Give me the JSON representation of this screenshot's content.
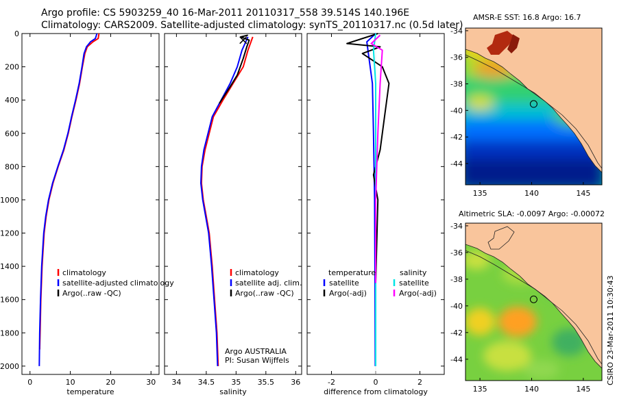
{
  "header": {
    "line1": "Argo profile: CS 5903259_40 16-Mar-2011 20110317_558 39.514S 140.196E",
    "line2": "Climatology: CARS2009. Satellite-adjusted climatology: synTS_20110317.nc (0.5d later)"
  },
  "colors": {
    "climatology": "#ff0000",
    "satellite": "#0000ff",
    "argo": "#000000",
    "sal_satellite": "#00e5e5",
    "sal_argo": "#ff00ff",
    "land": "#f9c59c"
  },
  "chart_data": [
    {
      "type": "line",
      "xlabel": "temperature",
      "ylabel": "",
      "xlim": [
        -2,
        32
      ],
      "ylim": [
        2050,
        0
      ],
      "y_reversed": true,
      "x_ticks": [
        0,
        10,
        20,
        30
      ],
      "y_ticks": [
        0,
        200,
        400,
        600,
        800,
        1000,
        1200,
        1400,
        1600,
        1800,
        2000
      ],
      "legend": {
        "placement": "lower-right",
        "entries": [
          "climatology",
          "satellite-adjusted climatology",
          "Argo(..raw -QC)"
        ]
      },
      "series": [
        {
          "name": "climatology",
          "color": "#ff0000",
          "points": [
            [
              17.1,
              0
            ],
            [
              16.9,
              30
            ],
            [
              15.6,
              50
            ],
            [
              14.2,
              80
            ],
            [
              13.6,
              120
            ],
            [
              13.0,
              200
            ],
            [
              12.3,
              300
            ],
            [
              11.4,
              400
            ],
            [
              10.4,
              500
            ],
            [
              9.5,
              600
            ],
            [
              8.4,
              700
            ],
            [
              7.0,
              800
            ],
            [
              5.7,
              900
            ],
            [
              4.7,
              1000
            ],
            [
              4.0,
              1100
            ],
            [
              3.5,
              1200
            ],
            [
              3.0,
              1400
            ],
            [
              2.7,
              1600
            ],
            [
              2.5,
              1800
            ],
            [
              2.4,
              1900
            ]
          ]
        },
        {
          "name": "satellite-adjusted climatology",
          "color": "#0000ff",
          "points": [
            [
              16.6,
              0
            ],
            [
              16.2,
              30
            ],
            [
              15.0,
              50
            ],
            [
              14.0,
              80
            ],
            [
              13.4,
              120
            ],
            [
              12.9,
              200
            ],
            [
              12.2,
              300
            ],
            [
              11.3,
              400
            ],
            [
              10.3,
              500
            ],
            [
              9.4,
              600
            ],
            [
              8.3,
              700
            ],
            [
              6.9,
              800
            ],
            [
              5.6,
              900
            ],
            [
              4.6,
              1000
            ],
            [
              3.9,
              1100
            ],
            [
              3.4,
              1200
            ],
            [
              2.9,
              1400
            ],
            [
              2.6,
              1600
            ],
            [
              2.4,
              1800
            ],
            [
              2.3,
              2000
            ]
          ]
        }
      ]
    },
    {
      "type": "line",
      "xlabel": "salinity",
      "ylabel": "",
      "xlim": [
        33.8,
        36.1
      ],
      "ylim": [
        2050,
        0
      ],
      "y_reversed": true,
      "x_ticks": [
        34,
        34.5,
        35,
        35.5,
        36
      ],
      "legend": {
        "placement": "lower-right",
        "entries": [
          "climatology",
          "satellite adj. clim.",
          "Argo(..raw -QC)"
        ]
      },
      "series": [
        {
          "name": "climatology",
          "color": "#ff0000",
          "points": [
            [
              35.28,
              20
            ],
            [
              35.2,
              100
            ],
            [
              35.12,
              200
            ],
            [
              34.95,
              300
            ],
            [
              34.78,
              400
            ],
            [
              34.62,
              500
            ],
            [
              34.55,
              600
            ],
            [
              34.48,
              700
            ],
            [
              34.43,
              800
            ],
            [
              34.42,
              900
            ],
            [
              34.45,
              1000
            ],
            [
              34.5,
              1100
            ],
            [
              34.55,
              1200
            ],
            [
              34.6,
              1400
            ],
            [
              34.64,
              1600
            ],
            [
              34.68,
              1800
            ],
            [
              34.7,
              2000
            ]
          ]
        },
        {
          "name": "satellite adj. clim.",
          "color": "#0000ff",
          "points": [
            [
              35.2,
              20
            ],
            [
              35.1,
              100
            ],
            [
              35.02,
              200
            ],
            [
              34.9,
              300
            ],
            [
              34.75,
              400
            ],
            [
              34.6,
              500
            ],
            [
              34.53,
              600
            ],
            [
              34.46,
              700
            ],
            [
              34.42,
              800
            ],
            [
              34.41,
              900
            ],
            [
              34.44,
              1000
            ],
            [
              34.49,
              1100
            ],
            [
              34.54,
              1200
            ],
            [
              34.59,
              1400
            ],
            [
              34.63,
              1600
            ],
            [
              34.67,
              1800
            ],
            [
              34.69,
              2000
            ]
          ]
        },
        {
          "name": "Argo(..raw -QC)",
          "color": "#000000",
          "points": [
            [
              35.2,
              10
            ],
            [
              35.08,
              20
            ],
            [
              35.22,
              40
            ],
            [
              35.18,
              80
            ],
            [
              35.12,
              150
            ],
            [
              35.02,
              250
            ],
            [
              34.9,
              320
            ],
            [
              34.72,
              420
            ]
          ]
        }
      ],
      "annotations": [
        "Argo AUSTRALIA",
        "PI: Susan Wijffels"
      ]
    },
    {
      "type": "line",
      "xlabel": "difference from climatology",
      "ylabel": "",
      "xlim": [
        -3.1,
        3.1
      ],
      "ylim": [
        2050,
        0
      ],
      "y_reversed": true,
      "x_ticks": [
        -2,
        0,
        2
      ],
      "legend": {
        "placement": "lower-right",
        "entries": [
          {
            "group": "temperature",
            "items": [
              "satellite",
              "Argo(-adj)"
            ]
          },
          {
            "group": "salinity",
            "items": [
              "satellite",
              "Argo(-adj)"
            ]
          }
        ]
      },
      "series": [
        {
          "name": "satellite (temperature)",
          "color": "#0000ff",
          "points": [
            [
              0,
              0
            ],
            [
              -0.4,
              50
            ],
            [
              -0.3,
              150
            ],
            [
              -0.15,
              300
            ],
            [
              -0.1,
              600
            ],
            [
              -0.05,
              1000
            ],
            [
              -0.03,
              1500
            ],
            [
              -0.02,
              2000
            ]
          ]
        },
        {
          "name": "Argo(-adj) (temperature)",
          "color": "#000000",
          "points": [
            [
              0.1,
              0
            ],
            [
              -1.3,
              60
            ],
            [
              0.2,
              80
            ],
            [
              -0.6,
              120
            ],
            [
              0.3,
              200
            ],
            [
              0.6,
              300
            ],
            [
              0.4,
              500
            ],
            [
              0.2,
              700
            ],
            [
              -0.1,
              850
            ],
            [
              0.1,
              1000
            ],
            [
              0.0,
              1500
            ],
            [
              0.0,
              1980
            ]
          ]
        },
        {
          "name": "satellite (salinity)",
          "color": "#00e5e5",
          "points": [
            [
              0.0,
              0
            ],
            [
              -0.1,
              100
            ],
            [
              0.0,
              300
            ],
            [
              0.0,
              700
            ],
            [
              0.0,
              1200
            ],
            [
              0.0,
              2000
            ]
          ]
        },
        {
          "name": "Argo(-adj) (salinity)",
          "color": "#ff00ff",
          "points": [
            [
              0.2,
              10
            ],
            [
              -0.2,
              60
            ],
            [
              0.3,
              100
            ],
            [
              0.2,
              300
            ],
            [
              0.1,
              600
            ],
            [
              0.0,
              1000
            ],
            [
              0.0,
              1500
            ]
          ]
        }
      ]
    }
  ],
  "maps": [
    {
      "title": "AMSR-E SST: 16.8 Argo: 16.7",
      "x_ticks": [
        "135",
        "140",
        "145"
      ],
      "y_ticks": [
        "-34",
        "-36",
        "-38",
        "-40",
        "-42",
        "-44"
      ],
      "argo_position": [
        140.196,
        -39.514
      ]
    },
    {
      "title": "Altimetric SLA: -0.0097 Argo: -0.00072",
      "x_ticks": [
        "135",
        "140",
        "145"
      ],
      "y_ticks": [
        "-34",
        "-36",
        "-38",
        "-40",
        "-42",
        "-44"
      ],
      "argo_position": [
        140.196,
        -39.514
      ]
    }
  ],
  "footer": {
    "stamp": "CSIRO 23-Mar-2011 10:30:43"
  }
}
